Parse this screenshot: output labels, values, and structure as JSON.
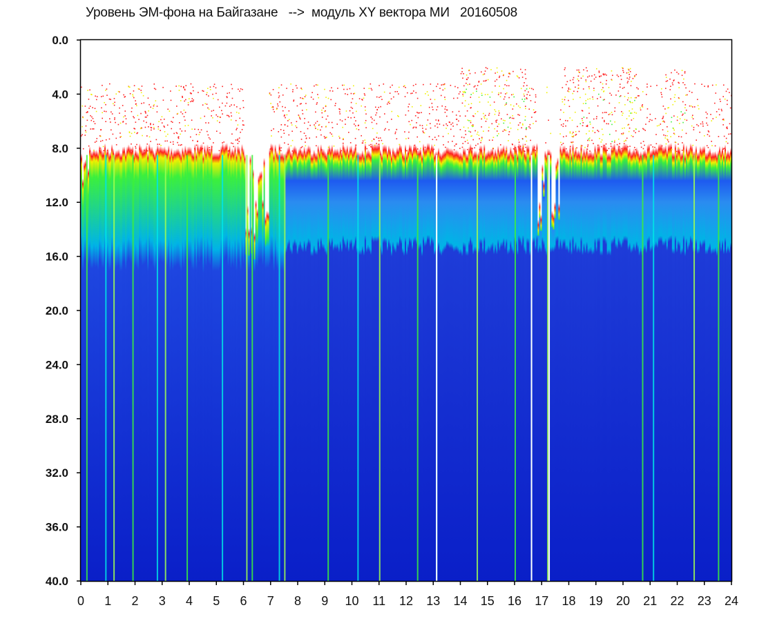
{
  "title": "Уровень ЭМ-фона на Байгазане   -->  модуль XY вектора МИ   20160508",
  "chart_data": {
    "type": "heatmap",
    "title": "Уровень ЭМ-фона на Байгазане   -->  модуль XY вектора МИ   20160508",
    "xlabel": "",
    "ylabel": "",
    "xlim": [
      0,
      24
    ],
    "ylim": [
      0,
      40
    ],
    "y_axis_inverted": true,
    "x_ticks": [
      "0",
      "1",
      "2",
      "3",
      "4",
      "5",
      "6",
      "7",
      "8",
      "9",
      "10",
      "11",
      "12",
      "13",
      "14",
      "15",
      "16",
      "17",
      "18",
      "19",
      "20",
      "21",
      "22",
      "23",
      "24"
    ],
    "y_ticks": [
      "0.0",
      "4.0",
      "8.0",
      "12.0",
      "16.0",
      "20.0",
      "24.0",
      "28.0",
      "32.0",
      "36.0",
      "40.0"
    ],
    "colorscale": [
      "#0a1fc8",
      "#1e5af0",
      "#00c8e6",
      "#3cf03c",
      "#f0f000",
      "#ff2020"
    ],
    "grid": false,
    "description_levels": {
      "band_noise_top": 8.0,
      "band_bright": [
        8.0,
        15.0
      ],
      "bright_bursts_top_hours": [
        [
          14,
          16.5
        ],
        [
          17.7,
          20.7
        ],
        [
          21.5,
          22.3
        ]
      ]
    },
    "vertical_bright_hours": [
      0.2,
      0.9,
      1.2,
      1.9,
      2.8,
      3.1,
      3.9,
      5.2,
      6.1,
      6.3,
      7.3,
      7.5,
      9.1,
      10.2,
      11.0,
      12.4,
      13.1,
      14.6,
      16.0,
      16.6,
      17.2,
      20.7,
      21.1,
      22.6,
      23.5
    ]
  }
}
